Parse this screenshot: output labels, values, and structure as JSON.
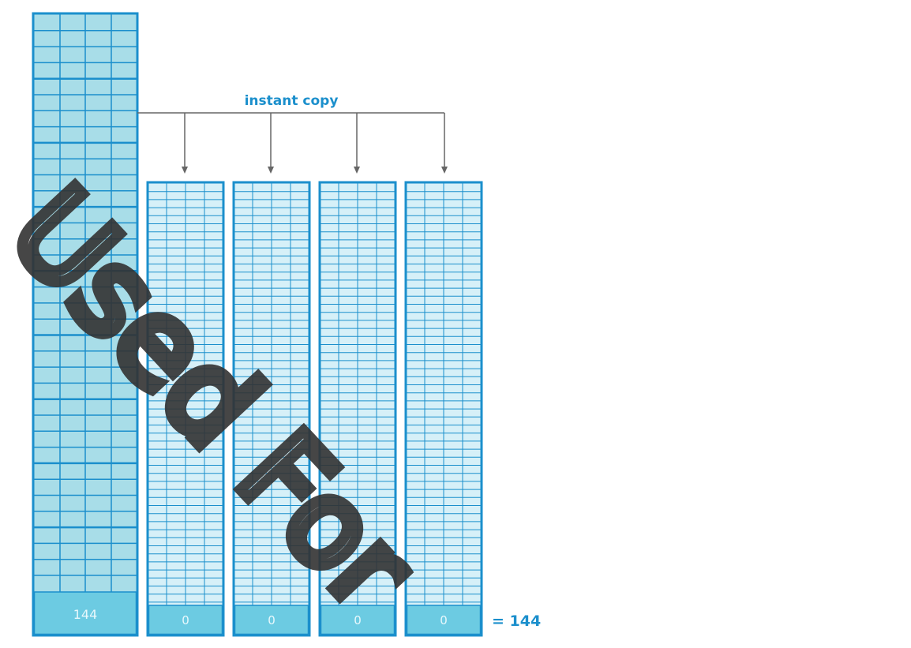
{
  "copy_label": "instant copy",
  "source": {
    "value": "144"
  },
  "copies": [
    {
      "value": "0"
    },
    {
      "value": "0"
    },
    {
      "value": "0"
    },
    {
      "value": "0"
    }
  ],
  "total_label": "= 144",
  "watermark": "Used For",
  "colors": {
    "blue": "#1b8fcc",
    "source_fill": "#a8dde8",
    "copy_fill": "#d6f0f8",
    "footer_fill": "#6ccbe2",
    "footer_text": "#e8f8fc",
    "arrow": "#666666"
  }
}
